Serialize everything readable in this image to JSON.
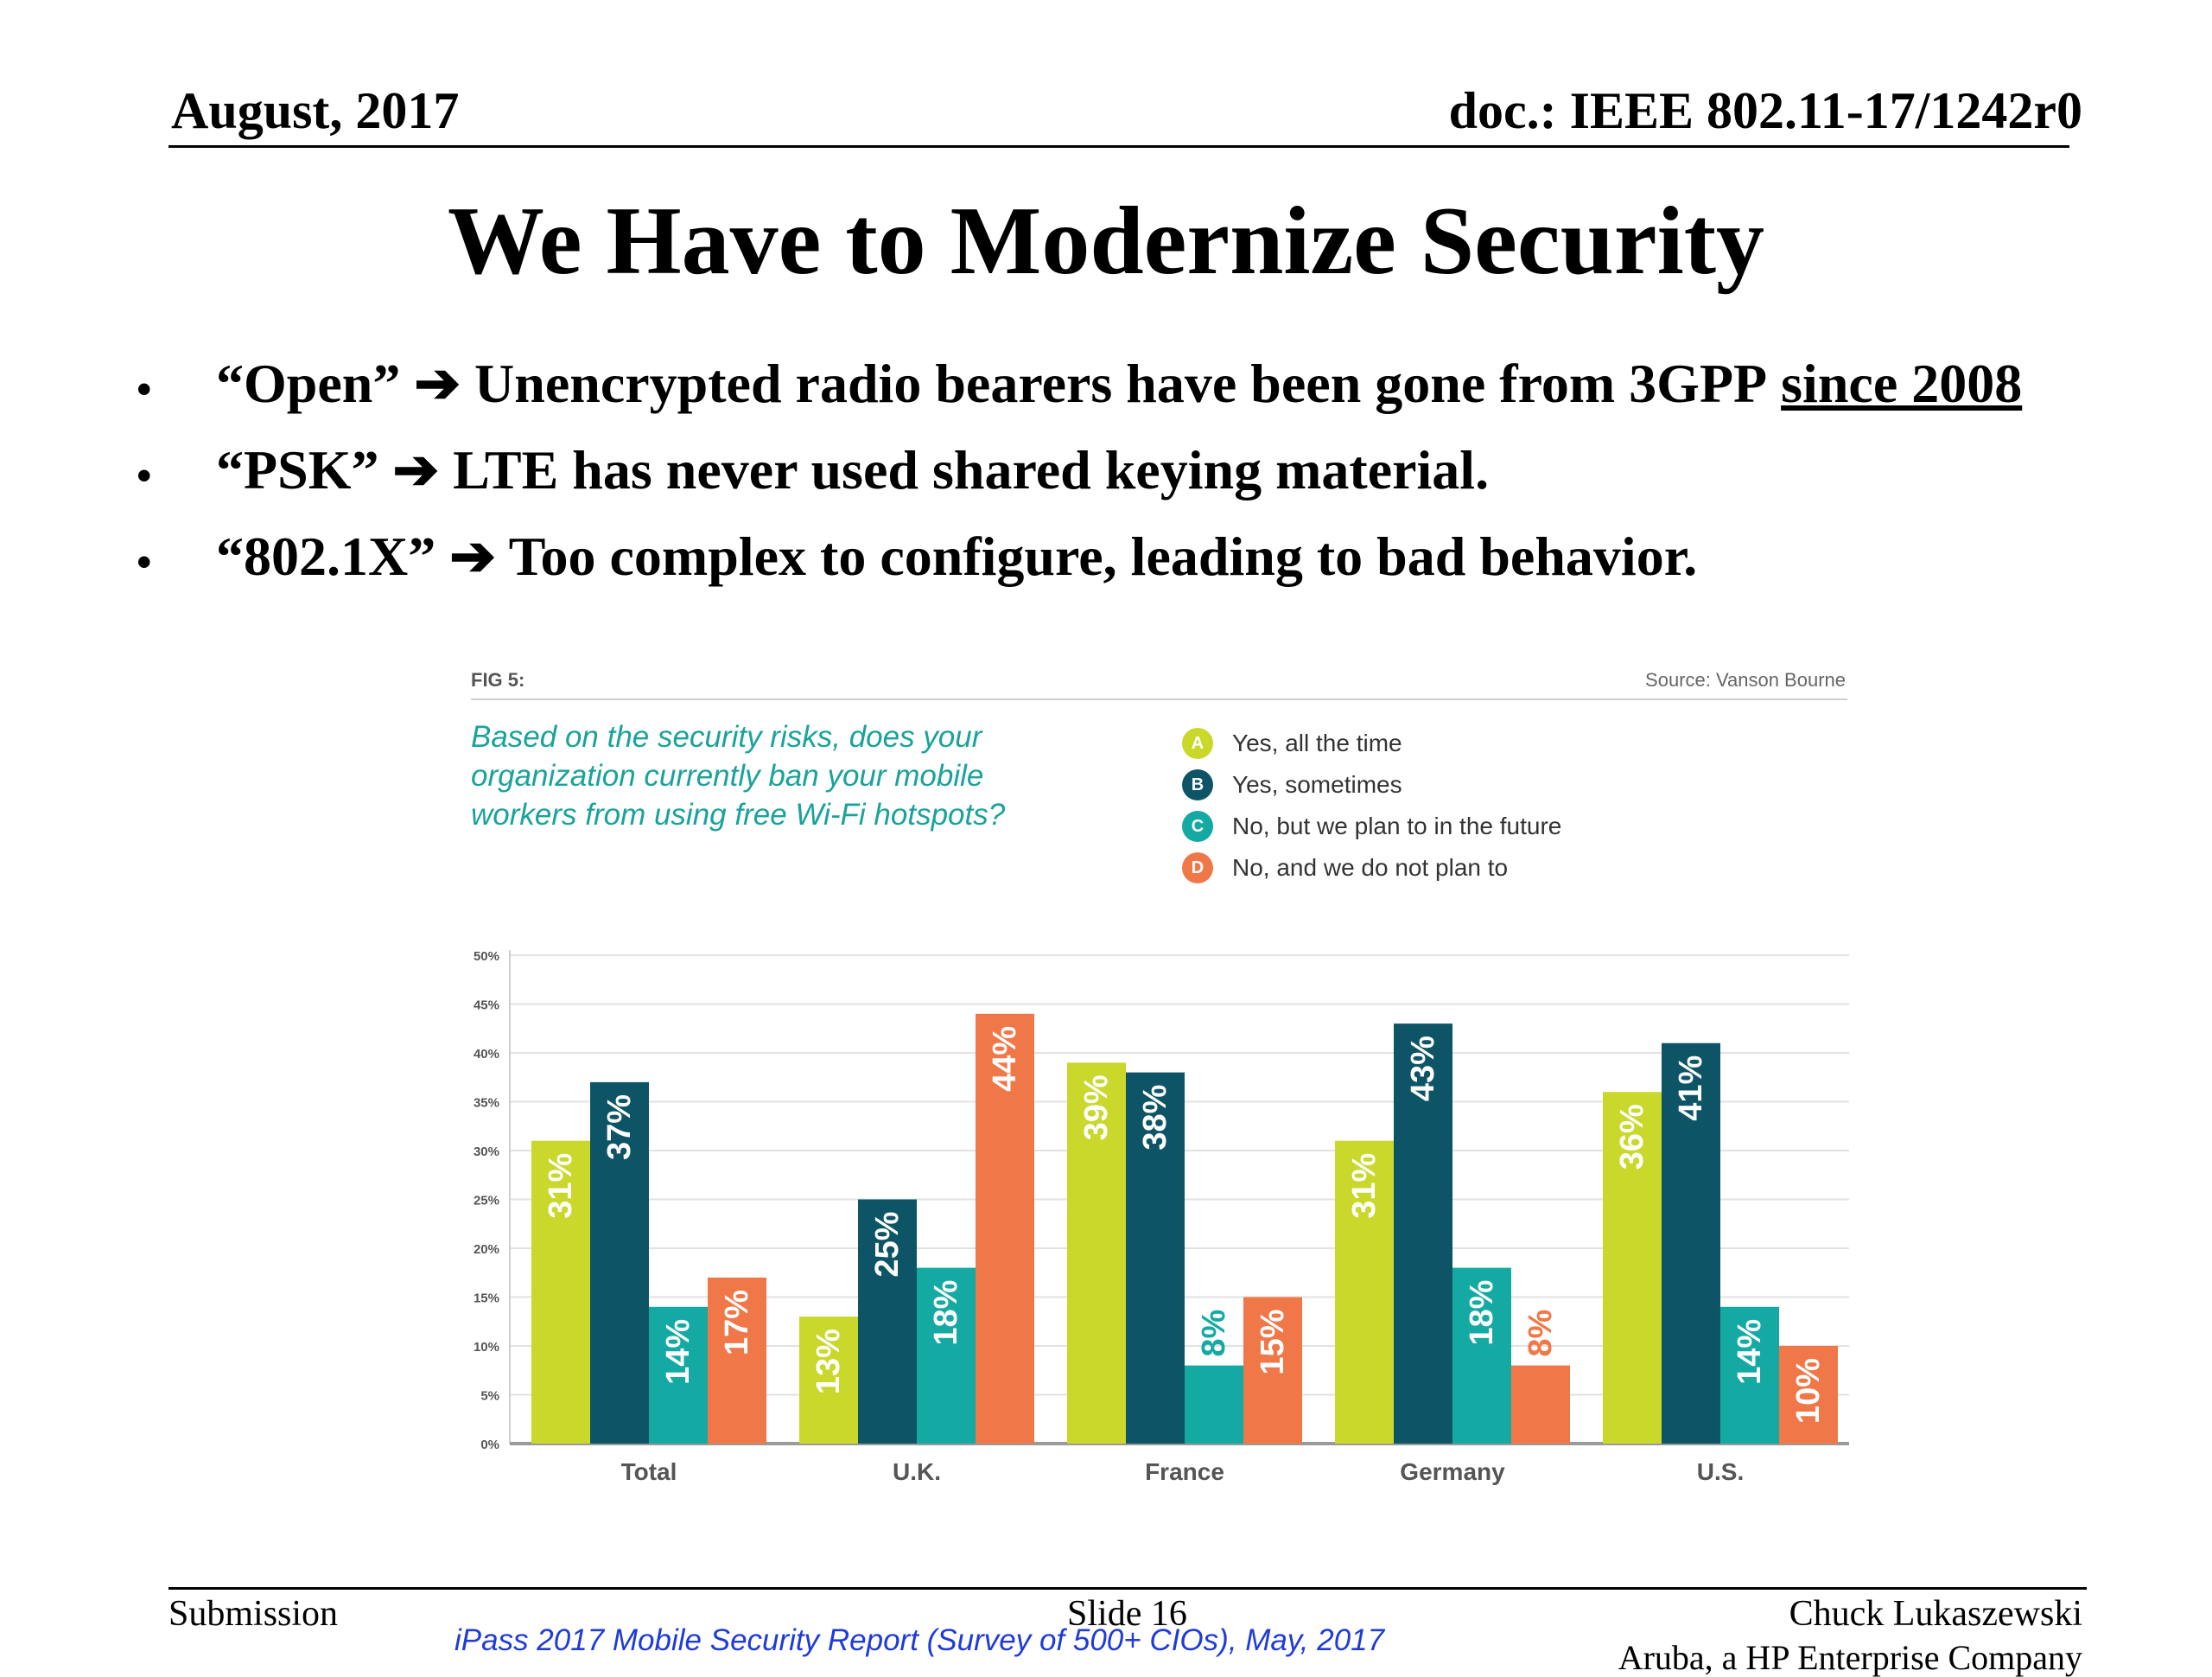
{
  "header": {
    "date": "August, 2017",
    "doc_id": "doc.: IEEE 802.11-17/1242r0"
  },
  "title": "We Have to Modernize Security",
  "bullets": [
    {
      "symbol": "•",
      "lead": "“Open” ➔ Unencrypted radio bearers have been gone from 3GPP",
      "underlined": "since 2008"
    },
    {
      "symbol": "•",
      "lead": "“PSK” ➔ LTE has never used shared keying material.",
      "underlined": ""
    },
    {
      "symbol": "•",
      "lead": "“802.1X” ➔ Too complex to configure, leading to bad behavior.",
      "underlined": ""
    }
  ],
  "figure": {
    "label": "FIG 5:",
    "source": "Source: Vanson Bourne",
    "question": "Based on the security risks, does your organization currently ban your mobile workers from using free Wi-Fi hotspots?",
    "legend": [
      {
        "badge": "A",
        "label": "Yes, all the time",
        "color": "#c9d82b"
      },
      {
        "badge": "B",
        "label": "Yes, sometimes",
        "color": "#0d5566"
      },
      {
        "badge": "C",
        "label": "No, but we plan to in the future",
        "color": "#14aaa3"
      },
      {
        "badge": "D",
        "label": "No, and we do not plan to",
        "color": "#f07848"
      }
    ]
  },
  "chart_data": {
    "type": "bar",
    "categories": [
      "Total",
      "U.K.",
      "France",
      "Germany",
      "U.S."
    ],
    "series": [
      {
        "name": "Yes, all the time",
        "values": [
          31,
          13,
          39,
          31,
          36
        ]
      },
      {
        "name": "Yes, sometimes",
        "values": [
          37,
          25,
          38,
          43,
          41
        ]
      },
      {
        "name": "No, but we plan to in the future",
        "values": [
          14,
          18,
          8,
          18,
          14
        ]
      },
      {
        "name": "No, and we do not plan to",
        "values": [
          17,
          44,
          15,
          8,
          10
        ]
      }
    ],
    "data_labels": [
      [
        "31%",
        "13%",
        "39%",
        "31%",
        "36%"
      ],
      [
        "37%",
        "25%",
        "38%",
        "43%",
        "41%"
      ],
      [
        "14%",
        "18%",
        "8%",
        "18%",
        "14%"
      ],
      [
        "17%",
        "44%",
        "15%",
        "8%",
        "10%"
      ]
    ],
    "y_ticks": [
      "0%",
      "5%",
      "10%",
      "15%",
      "20%",
      "25%",
      "30%",
      "35%",
      "40%",
      "45%",
      "50%"
    ],
    "ylim": [
      0,
      50
    ],
    "colors": [
      "#c9d82b",
      "#0d5566",
      "#14aaa3",
      "#f07848"
    ],
    "grid": true,
    "legend_position": "top-right",
    "title": "",
    "xlabel": "",
    "ylabel": ""
  },
  "footer": {
    "left": "Submission",
    "center": "Slide 16",
    "author": "Chuck Lukaszewski",
    "company": "Aruba, a HP Enterprise Company",
    "citation": "iPass 2017 Mobile Security Report (Survey of 500+ CIOs), May, 2017"
  }
}
